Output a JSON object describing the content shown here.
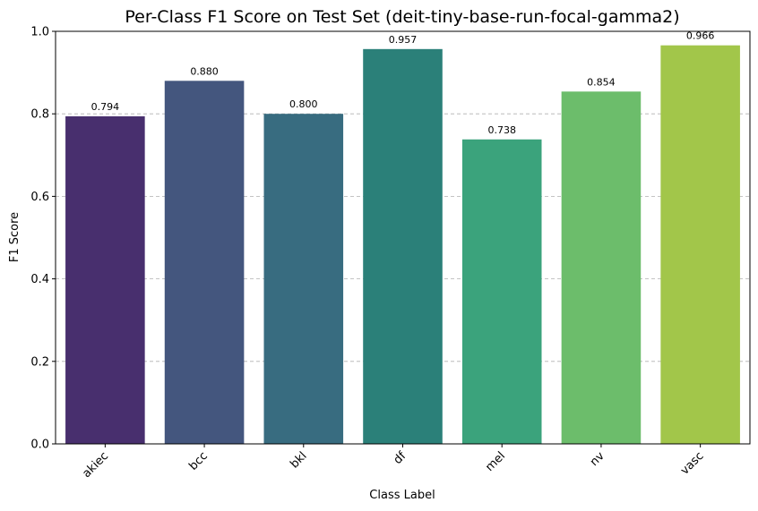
{
  "chart_data": {
    "type": "bar",
    "title": "Per-Class F1 Score on Test Set (deit-tiny-base-run-focal-gamma2)",
    "xlabel": "Class Label",
    "ylabel": "F1 Score",
    "categories": [
      "akiec",
      "bcc",
      "bkl",
      "df",
      "mel",
      "nv",
      "vasc"
    ],
    "values": [
      0.794,
      0.88,
      0.8,
      0.957,
      0.738,
      0.854,
      0.966
    ],
    "data_labels": [
      "0.794",
      "0.880",
      "0.800",
      "0.957",
      "0.738",
      "0.854",
      "0.966"
    ],
    "colors": [
      "#482f6e",
      "#44567e",
      "#386c80",
      "#2b8079",
      "#3ba37c",
      "#6cbd6b",
      "#a2c64a"
    ],
    "ylim": [
      0,
      1
    ],
    "yticks": [
      0.0,
      0.2,
      0.4,
      0.6,
      0.8,
      1.0
    ],
    "ytick_labels": [
      "0.0",
      "0.2",
      "0.4",
      "0.6",
      "0.8",
      "1.0"
    ],
    "grid": "horizontal dashed",
    "legend": "none"
  }
}
